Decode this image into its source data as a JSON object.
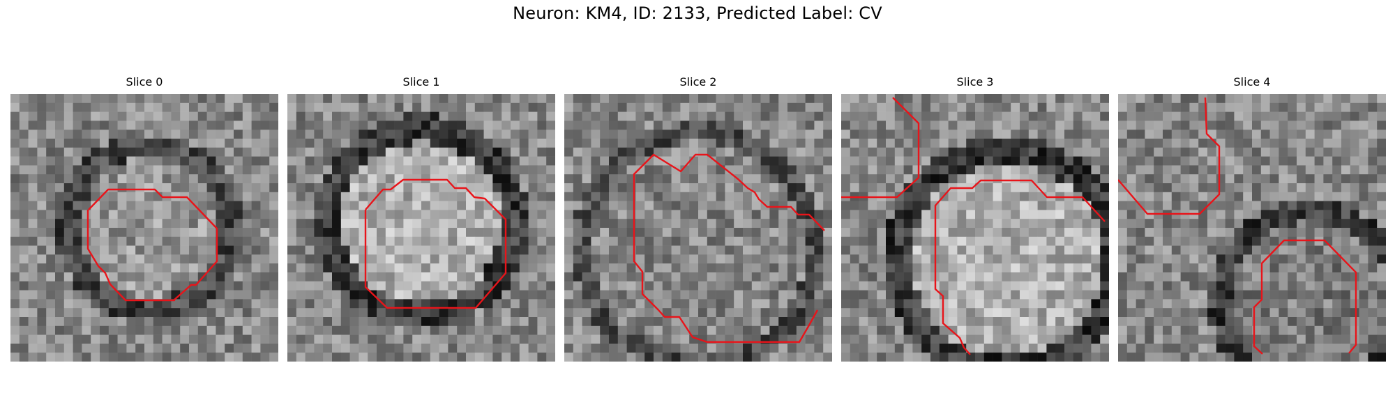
{
  "figure": {
    "title": "Neuron: KM4, ID: 2133, Predicted Label: CV"
  },
  "panels": [
    {
      "title": "Slice 0"
    },
    {
      "title": "Slice 1"
    },
    {
      "title": "Slice 2"
    },
    {
      "title": "Slice 3"
    },
    {
      "title": "Slice 4"
    }
  ],
  "colors": {
    "contour": "#e8141a",
    "background": "#ffffff"
  },
  "image_grid_size": 30
}
